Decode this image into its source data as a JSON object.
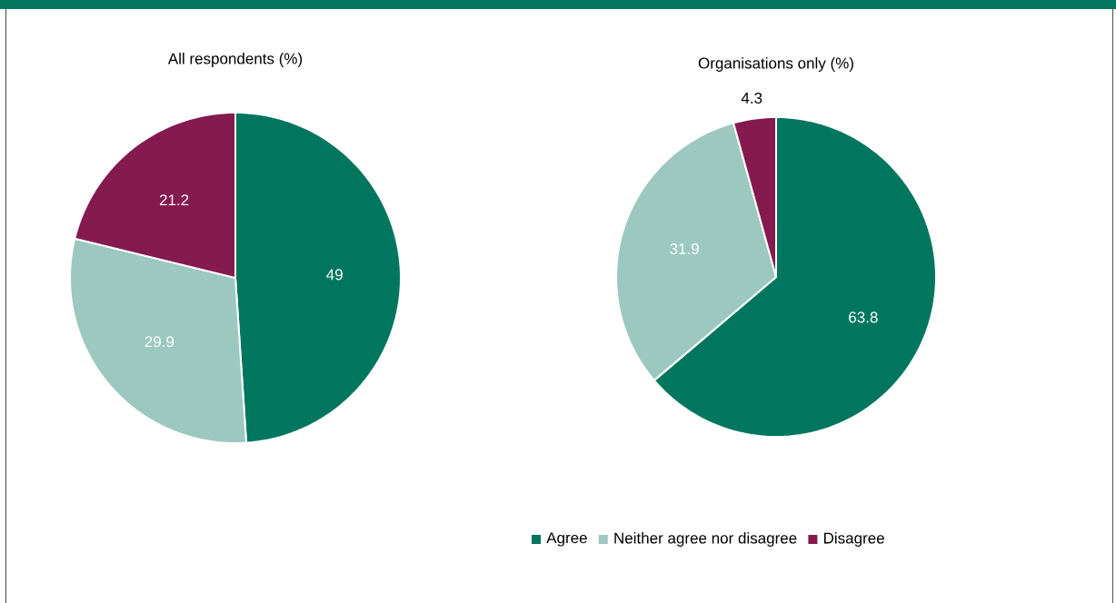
{
  "chart_data": [
    {
      "type": "pie",
      "title": "All respondents (%)",
      "categories": [
        null,
        null,
        null
      ],
      "values": [
        49,
        29.9,
        21.2
      ],
      "colors": [
        "#00765f",
        "#9cc8bf",
        "#851a4f"
      ],
      "data_labels": true
    },
    {
      "type": "pie",
      "title": "Organisations only (%)",
      "categories": [
        "Agree",
        "Neither agree nor disagree",
        "Disagree"
      ],
      "values": [
        63.8,
        31.9,
        4.3
      ],
      "colors": [
        "#00765f",
        "#9cc8bf",
        "#851a4f"
      ],
      "data_labels": true,
      "legend": "bottom"
    }
  ]
}
